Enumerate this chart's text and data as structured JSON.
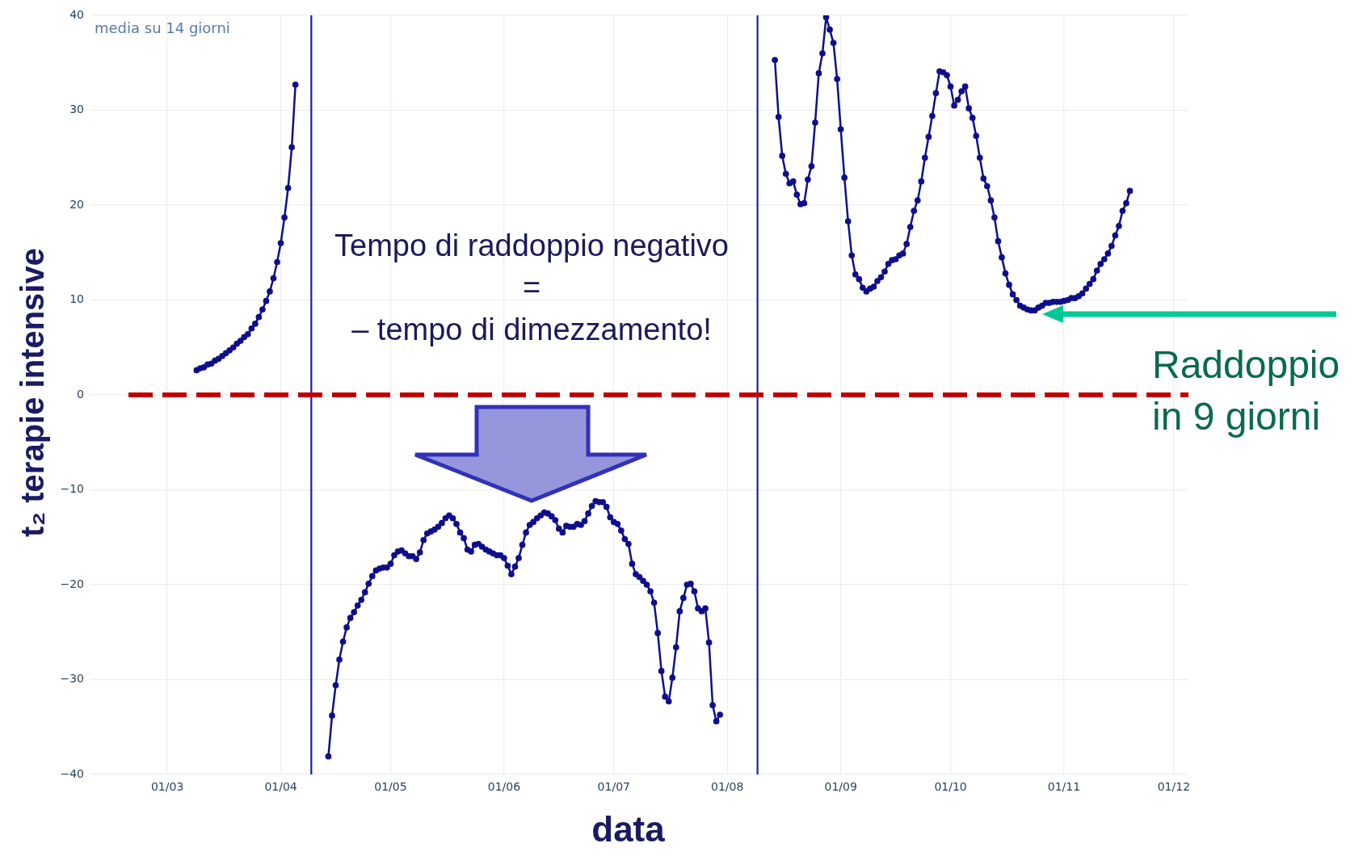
{
  "chart_data": {
    "type": "line",
    "title": "media su 14 giorni",
    "xlabel": "data",
    "ylabel": "t₂ terapie intensive",
    "xlim": [
      "--02-09",
      "--12-05"
    ],
    "xticks": [
      {
        "value": "--03-01",
        "label": "01/03"
      },
      {
        "value": "--04-01",
        "label": "01/04"
      },
      {
        "value": "--05-01",
        "label": "01/05"
      },
      {
        "value": "--06-01",
        "label": "01/06"
      },
      {
        "value": "--07-01",
        "label": "01/07"
      },
      {
        "value": "--08-01",
        "label": "01/08"
      },
      {
        "value": "--09-01",
        "label": "01/09"
      },
      {
        "value": "--10-01",
        "label": "01/10"
      },
      {
        "value": "--11-01",
        "label": "01/11"
      },
      {
        "value": "--12-01",
        "label": "01/12"
      }
    ],
    "ylim": [
      -40,
      40
    ],
    "yticks": [
      {
        "value": -40,
        "label": "−40"
      },
      {
        "value": -30,
        "label": "−30"
      },
      {
        "value": -20,
        "label": "−20"
      },
      {
        "value": -10,
        "label": "−10"
      },
      0,
      10,
      20,
      30,
      40
    ],
    "grid": true,
    "legend": false,
    "marker": "circle",
    "series": [
      {
        "color": "#0f0f8c",
        "x": [
          "--03-09",
          "--03-10",
          "--03-11",
          "--03-12",
          "--03-13",
          "--03-14",
          "--03-15",
          "--03-16",
          "--03-17",
          "--03-18",
          "--03-19",
          "--03-20",
          "--03-21",
          "--03-22",
          "--03-23",
          "--03-24",
          "--03-25",
          "--03-26",
          "--03-27",
          "--03-28",
          "--03-29",
          "--03-30",
          "--03-31",
          "--04-01",
          "--04-02",
          "--04-03",
          "--04-04",
          "--04-05"
        ],
        "values": [
          2.6,
          2.8,
          2.9,
          3.2,
          3.3,
          3.6,
          3.8,
          4.1,
          4.4,
          4.7,
          5.0,
          5.4,
          5.7,
          6.1,
          6.4,
          7.0,
          7.5,
          8.2,
          9.0,
          9.9,
          10.9,
          12.3,
          14.0,
          16.0,
          18.7,
          21.8,
          26.1,
          32.7
        ]
      },
      {
        "color": "#0f0f8c",
        "x": [
          "--04-14",
          "--04-15",
          "--04-16",
          "--04-17",
          "--04-18",
          "--04-19",
          "--04-20",
          "--04-21",
          "--04-22",
          "--04-23",
          "--04-24",
          "--04-25",
          "--04-26",
          "--04-27",
          "--04-28",
          "--04-29",
          "--04-30",
          "--05-01",
          "--05-02",
          "--05-03",
          "--05-04",
          "--05-05",
          "--05-06",
          "--05-07",
          "--05-08",
          "--05-09",
          "--05-10",
          "--05-11",
          "--05-12",
          "--05-13",
          "--05-14",
          "--05-15",
          "--05-16",
          "--05-17",
          "--05-18",
          "--05-19",
          "--05-20",
          "--05-21",
          "--05-22",
          "--05-23",
          "--05-24",
          "--05-25",
          "--05-26",
          "--05-27",
          "--05-28",
          "--05-29",
          "--05-30",
          "--05-31",
          "--06-01",
          "--06-02",
          "--06-03",
          "--06-04",
          "--06-05",
          "--06-06",
          "--06-07",
          "--06-08",
          "--06-09",
          "--06-10",
          "--06-11",
          "--06-12",
          "--06-13",
          "--06-14",
          "--06-15",
          "--06-16",
          "--06-17",
          "--06-18",
          "--06-19",
          "--06-20",
          "--06-21",
          "--06-22",
          "--06-23",
          "--06-24",
          "--06-25",
          "--06-26",
          "--06-27",
          "--06-28",
          "--06-29",
          "--06-30",
          "--07-01",
          "--07-02",
          "--07-03",
          "--07-04",
          "--07-05",
          "--07-06",
          "--07-07",
          "--07-08",
          "--07-09",
          "--07-10",
          "--07-11",
          "--07-12",
          "--07-13",
          "--07-14",
          "--07-15",
          "--07-16",
          "--07-17",
          "--07-18",
          "--07-19",
          "--07-20",
          "--07-21",
          "--07-22",
          "--07-23",
          "--07-24",
          "--07-25",
          "--07-26",
          "--07-27",
          "--07-28",
          "--07-29",
          "--07-30"
        ],
        "values": [
          -38.1,
          -33.8,
          -30.6,
          -27.9,
          -26.0,
          -24.5,
          -23.5,
          -22.9,
          -22.2,
          -21.6,
          -20.8,
          -19.9,
          -19.1,
          -18.5,
          -18.3,
          -18.2,
          -18.2,
          -17.8,
          -16.9,
          -16.5,
          -16.4,
          -16.7,
          -17.0,
          -17.0,
          -17.3,
          -16.6,
          -15.3,
          -14.6,
          -14.4,
          -14.2,
          -13.9,
          -13.5,
          -13.0,
          -12.7,
          -13.0,
          -13.6,
          -14.5,
          -15.1,
          -16.3,
          -16.5,
          -15.8,
          -15.7,
          -16.0,
          -16.3,
          -16.5,
          -16.7,
          -16.9,
          -16.9,
          -17.2,
          -18.0,
          -18.9,
          -18.1,
          -17.2,
          -15.8,
          -14.5,
          -13.7,
          -13.4,
          -13.0,
          -12.7,
          -12.4,
          -12.5,
          -12.8,
          -13.2,
          -14.1,
          -14.5,
          -13.8,
          -13.9,
          -13.9,
          -13.6,
          -13.7,
          -13.3,
          -12.5,
          -11.7,
          -11.2,
          -11.3,
          -11.3,
          -11.8,
          -12.9,
          -13.4,
          -13.6,
          -14.3,
          -15.2,
          -15.7,
          -17.8,
          -18.9,
          -19.2,
          -19.6,
          -20.0,
          -20.7,
          -21.9,
          -25.1,
          -29.1,
          -31.8,
          -32.3,
          -29.8,
          -26.6,
          -22.8,
          -21.4,
          -20.0,
          -19.9,
          -20.7,
          -22.5,
          -22.8,
          -22.5,
          -26.1,
          -32.7,
          -34.4,
          -33.7
        ]
      },
      {
        "color": "#0f0f8c",
        "x": [
          "--08-14",
          "--08-15",
          "--08-16",
          "--08-17",
          "--08-18",
          "--08-19",
          "--08-20",
          "--08-21",
          "--08-22",
          "--08-23",
          "--08-24",
          "--08-25",
          "--08-26",
          "--08-27",
          "--08-28",
          "--08-29",
          "--08-30",
          "--08-31",
          "--09-01",
          "--09-02",
          "--09-03",
          "--09-04",
          "--09-05",
          "--09-06",
          "--09-07",
          "--09-08",
          "--09-09",
          "--09-10",
          "--09-11",
          "--09-12",
          "--09-13",
          "--09-14",
          "--09-15",
          "--09-16",
          "--09-17",
          "--09-18",
          "--09-19",
          "--09-20",
          "--09-21",
          "--09-22",
          "--09-23",
          "--09-24",
          "--09-25",
          "--09-26",
          "--09-27",
          "--09-28",
          "--09-29",
          "--09-30",
          "--10-01",
          "--10-02",
          "--10-03",
          "--10-04",
          "--10-05",
          "--10-06",
          "--10-07",
          "--10-08",
          "--10-09",
          "--10-10",
          "--10-11",
          "--10-12",
          "--10-13",
          "--10-14",
          "--10-15",
          "--10-16",
          "--10-17",
          "--10-18",
          "--10-19",
          "--10-20",
          "--10-21",
          "--10-22",
          "--10-23",
          "--10-24",
          "--10-25",
          "--10-26",
          "--10-27",
          "--10-28",
          "--10-29",
          "--10-30",
          "--10-31",
          "--11-01",
          "--11-02",
          "--11-03",
          "--11-04",
          "--11-05",
          "--11-06",
          "--11-07",
          "--11-08",
          "--11-09",
          "--11-10",
          "--11-11",
          "--11-12",
          "--11-13",
          "--11-14",
          "--11-15",
          "--11-16",
          "--11-17",
          "--11-18",
          "--11-19"
        ],
        "values": [
          35.3,
          29.3,
          25.2,
          23.3,
          22.3,
          22.5,
          21.1,
          20.1,
          20.2,
          22.7,
          24.1,
          28.7,
          33.9,
          36.0,
          39.8,
          38.5,
          37.1,
          33.3,
          28.0,
          22.9,
          18.3,
          14.7,
          12.7,
          12.2,
          11.3,
          10.9,
          11.2,
          11.4,
          12.0,
          12.4,
          13.0,
          13.8,
          14.2,
          14.3,
          14.7,
          14.9,
          15.9,
          17.7,
          19.4,
          20.5,
          22.5,
          25.0,
          27.2,
          29.4,
          31.8,
          34.1,
          34.0,
          33.7,
          32.5,
          30.5,
          31.1,
          32.0,
          32.5,
          30.2,
          29.2,
          27.3,
          25.0,
          22.8,
          22.0,
          20.5,
          18.7,
          16.2,
          14.5,
          12.8,
          11.6,
          10.6,
          10.0,
          9.4,
          9.2,
          9.0,
          8.9,
          8.9,
          9.2,
          9.4,
          9.7,
          9.7,
          9.8,
          9.8,
          9.8,
          9.9,
          10.0,
          10.2,
          10.2,
          10.4,
          10.7,
          11.2,
          11.7,
          12.2,
          13.1,
          13.8,
          14.3,
          14.9,
          15.7,
          16.8,
          17.8,
          19.4,
          20.2,
          21.5
        ]
      }
    ],
    "ref_lines": [
      {
        "axis": "x",
        "value": "--04-09T08:00",
        "color": "#1f1f9e"
      },
      {
        "axis": "x",
        "value": "--08-09T06:00",
        "color": "#1f1f9e"
      },
      {
        "axis": "y",
        "value": 0,
        "color": "#c00000",
        "line_style": "dashed"
      }
    ],
    "annotations": [
      "Tempo di raddoppio negativo\n=\n– tempo di dimezzamento!",
      "Raddoppio\nin 9 giorni"
    ]
  }
}
